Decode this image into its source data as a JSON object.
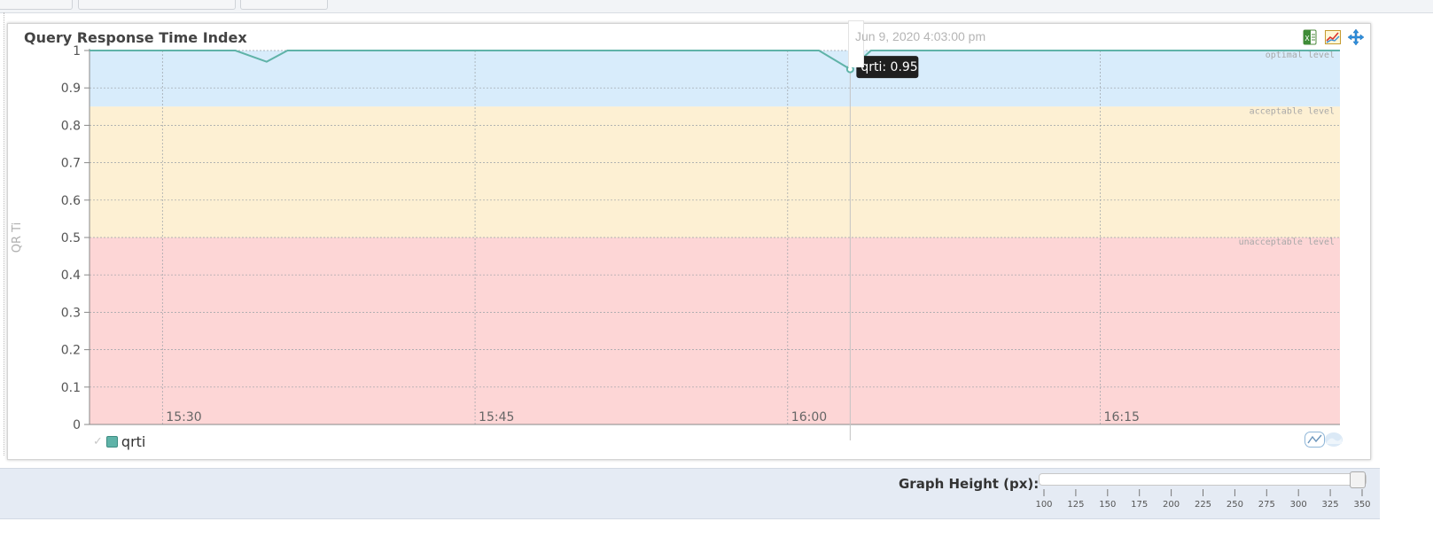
{
  "chart_data": {
    "type": "line",
    "title": "Query Response Time Index",
    "ylabel": "QR Ti",
    "xlabel": "",
    "ylim": [
      0,
      1
    ],
    "yticks": [
      "0",
      "0.1",
      "0.2",
      "0.3",
      "0.4",
      "0.5",
      "0.6",
      "0.7",
      "0.8",
      "0.9",
      "1"
    ],
    "xticks": [
      {
        "label": "15:30",
        "minutes": 930
      },
      {
        "label": "15:45",
        "minutes": 945
      },
      {
        "label": "16:00",
        "minutes": 960
      },
      {
        "label": "16:15",
        "minutes": 975
      }
    ],
    "xlim": [
      926.5,
      986.5
    ],
    "grid": true,
    "bands": [
      {
        "label": "optimal level",
        "from": 0.85,
        "to": 1.0,
        "color": "#d8ecfb"
      },
      {
        "label": "acceptable level",
        "from": 0.5,
        "to": 0.85,
        "color": "#fdf0d3"
      },
      {
        "label": "unacceptable level",
        "from": 0.0,
        "to": 0.5,
        "color": "#fdd6d6"
      }
    ],
    "series": [
      {
        "name": "qrti",
        "color": "#5fb3a8",
        "x": [
          926.5,
          933.5,
          935,
          936,
          961.5,
          963,
          964,
          986.5
        ],
        "y": [
          1.0,
          1.0,
          0.97,
          1.0,
          1.0,
          0.95,
          1.0,
          1.0
        ]
      }
    ],
    "tooltip": {
      "text": "qrti: 0.95",
      "x": 963,
      "y": 0.95
    },
    "timestamp": "Jun 9, 2020 4:03:00 pm",
    "legend_position": "bottom-left"
  },
  "toolbar": {
    "excel_icon": "excel-export-icon",
    "chart_icon": "chart-type-icon",
    "move_icon": "move-icon"
  },
  "graph_height": {
    "label": "Graph Height (px):",
    "ticks": [
      "100",
      "125",
      "150",
      "175",
      "200",
      "225",
      "250",
      "275",
      "300",
      "325",
      "350"
    ],
    "value": 350,
    "min": 100,
    "max": 350
  },
  "legend": {
    "check": "✓"
  }
}
